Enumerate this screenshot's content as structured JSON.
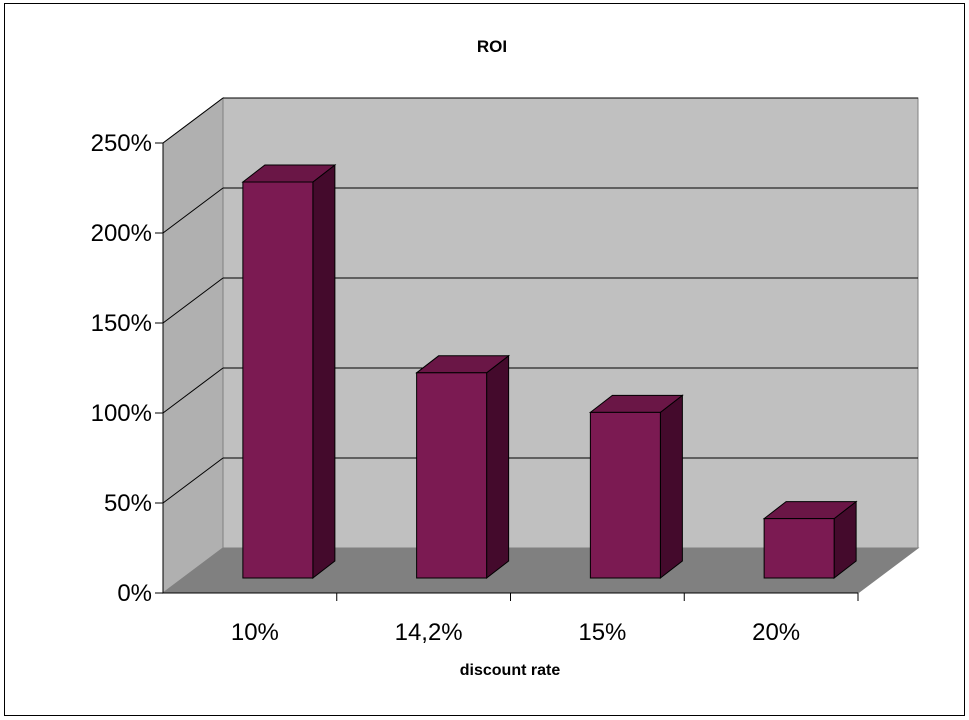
{
  "chart_data": {
    "type": "bar",
    "title": "ROI",
    "xlabel": "discount rate",
    "ylabel": "",
    "categories": [
      "10%",
      "14,2%",
      "15%",
      "20%"
    ],
    "values": [
      2.2,
      1.14,
      0.92,
      0.33
    ],
    "ylim": [
      0,
      2.5
    ],
    "y_ticks": [
      "0%",
      "50%",
      "100%",
      "150%",
      "200%",
      "250%"
    ],
    "grid": true,
    "legend": "none",
    "style": "3d-column",
    "colors": {
      "bar_front": "#7B1A52",
      "bar_top": "#6A1646",
      "bar_side": "#440A2C",
      "wall": "#C0C0C0",
      "side_wall": "#B0B0B0",
      "floor": "#808080"
    }
  }
}
